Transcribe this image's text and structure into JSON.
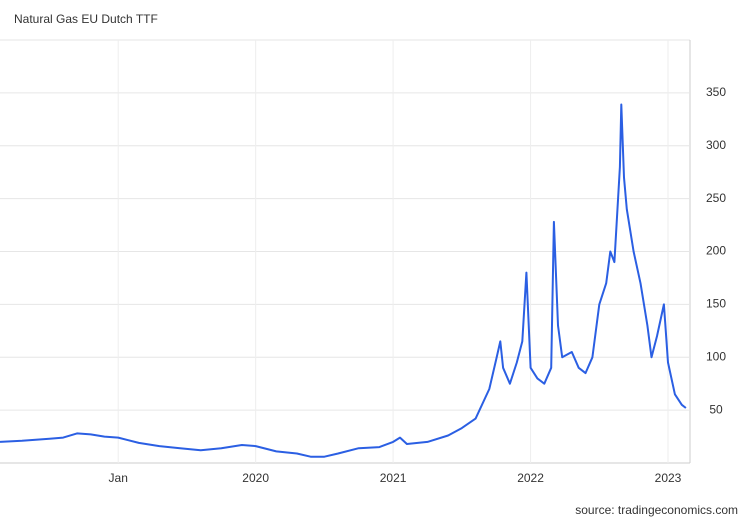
{
  "chart_data": {
    "type": "line",
    "title": "Natural Gas EU Dutch TTF",
    "source": "source: tradingeconomics.com",
    "x": [
      2018.14,
      2018.3,
      2018.5,
      2018.6,
      2018.7,
      2018.8,
      2018.9,
      2019.0,
      2019.15,
      2019.3,
      2019.45,
      2019.6,
      2019.75,
      2019.9,
      2020.0,
      2020.15,
      2020.3,
      2020.4,
      2020.5,
      2020.6,
      2020.75,
      2020.9,
      2021.0,
      2021.05,
      2021.1,
      2021.25,
      2021.4,
      2021.5,
      2021.6,
      2021.7,
      2021.75,
      2021.78,
      2021.8,
      2021.85,
      2021.9,
      2021.94,
      2021.97,
      2022.0,
      2022.05,
      2022.1,
      2022.15,
      2022.17,
      2022.2,
      2022.23,
      2022.3,
      2022.35,
      2022.4,
      2022.45,
      2022.5,
      2022.55,
      2022.58,
      2022.61,
      2022.65,
      2022.66,
      2022.68,
      2022.7,
      2022.75,
      2022.8,
      2022.85,
      2022.88,
      2022.92,
      2022.97,
      2023.0,
      2023.05,
      2023.1,
      2023.13
    ],
    "values": [
      20,
      21,
      23,
      24,
      28,
      27,
      25,
      24,
      19,
      16,
      14,
      12,
      14,
      17,
      16,
      11,
      9,
      6,
      6,
      9,
      14,
      15,
      20,
      24,
      18,
      20,
      26,
      33,
      42,
      70,
      98,
      115,
      90,
      75,
      95,
      115,
      180,
      90,
      80,
      75,
      90,
      228,
      130,
      100,
      105,
      90,
      85,
      100,
      150,
      170,
      200,
      190,
      280,
      339,
      270,
      240,
      200,
      170,
      130,
      100,
      120,
      150,
      95,
      65,
      55,
      52
    ],
    "color": "#2b5fe3",
    "xlim": [
      2018.14,
      2023.16
    ],
    "xticks": [
      {
        "value": 2019,
        "label": "Jan"
      },
      2020,
      2021,
      2022,
      2023
    ],
    "ylim": [
      0,
      400
    ],
    "yticks": [
      50,
      100,
      150,
      200,
      250,
      300,
      350
    ],
    "grid": true
  }
}
